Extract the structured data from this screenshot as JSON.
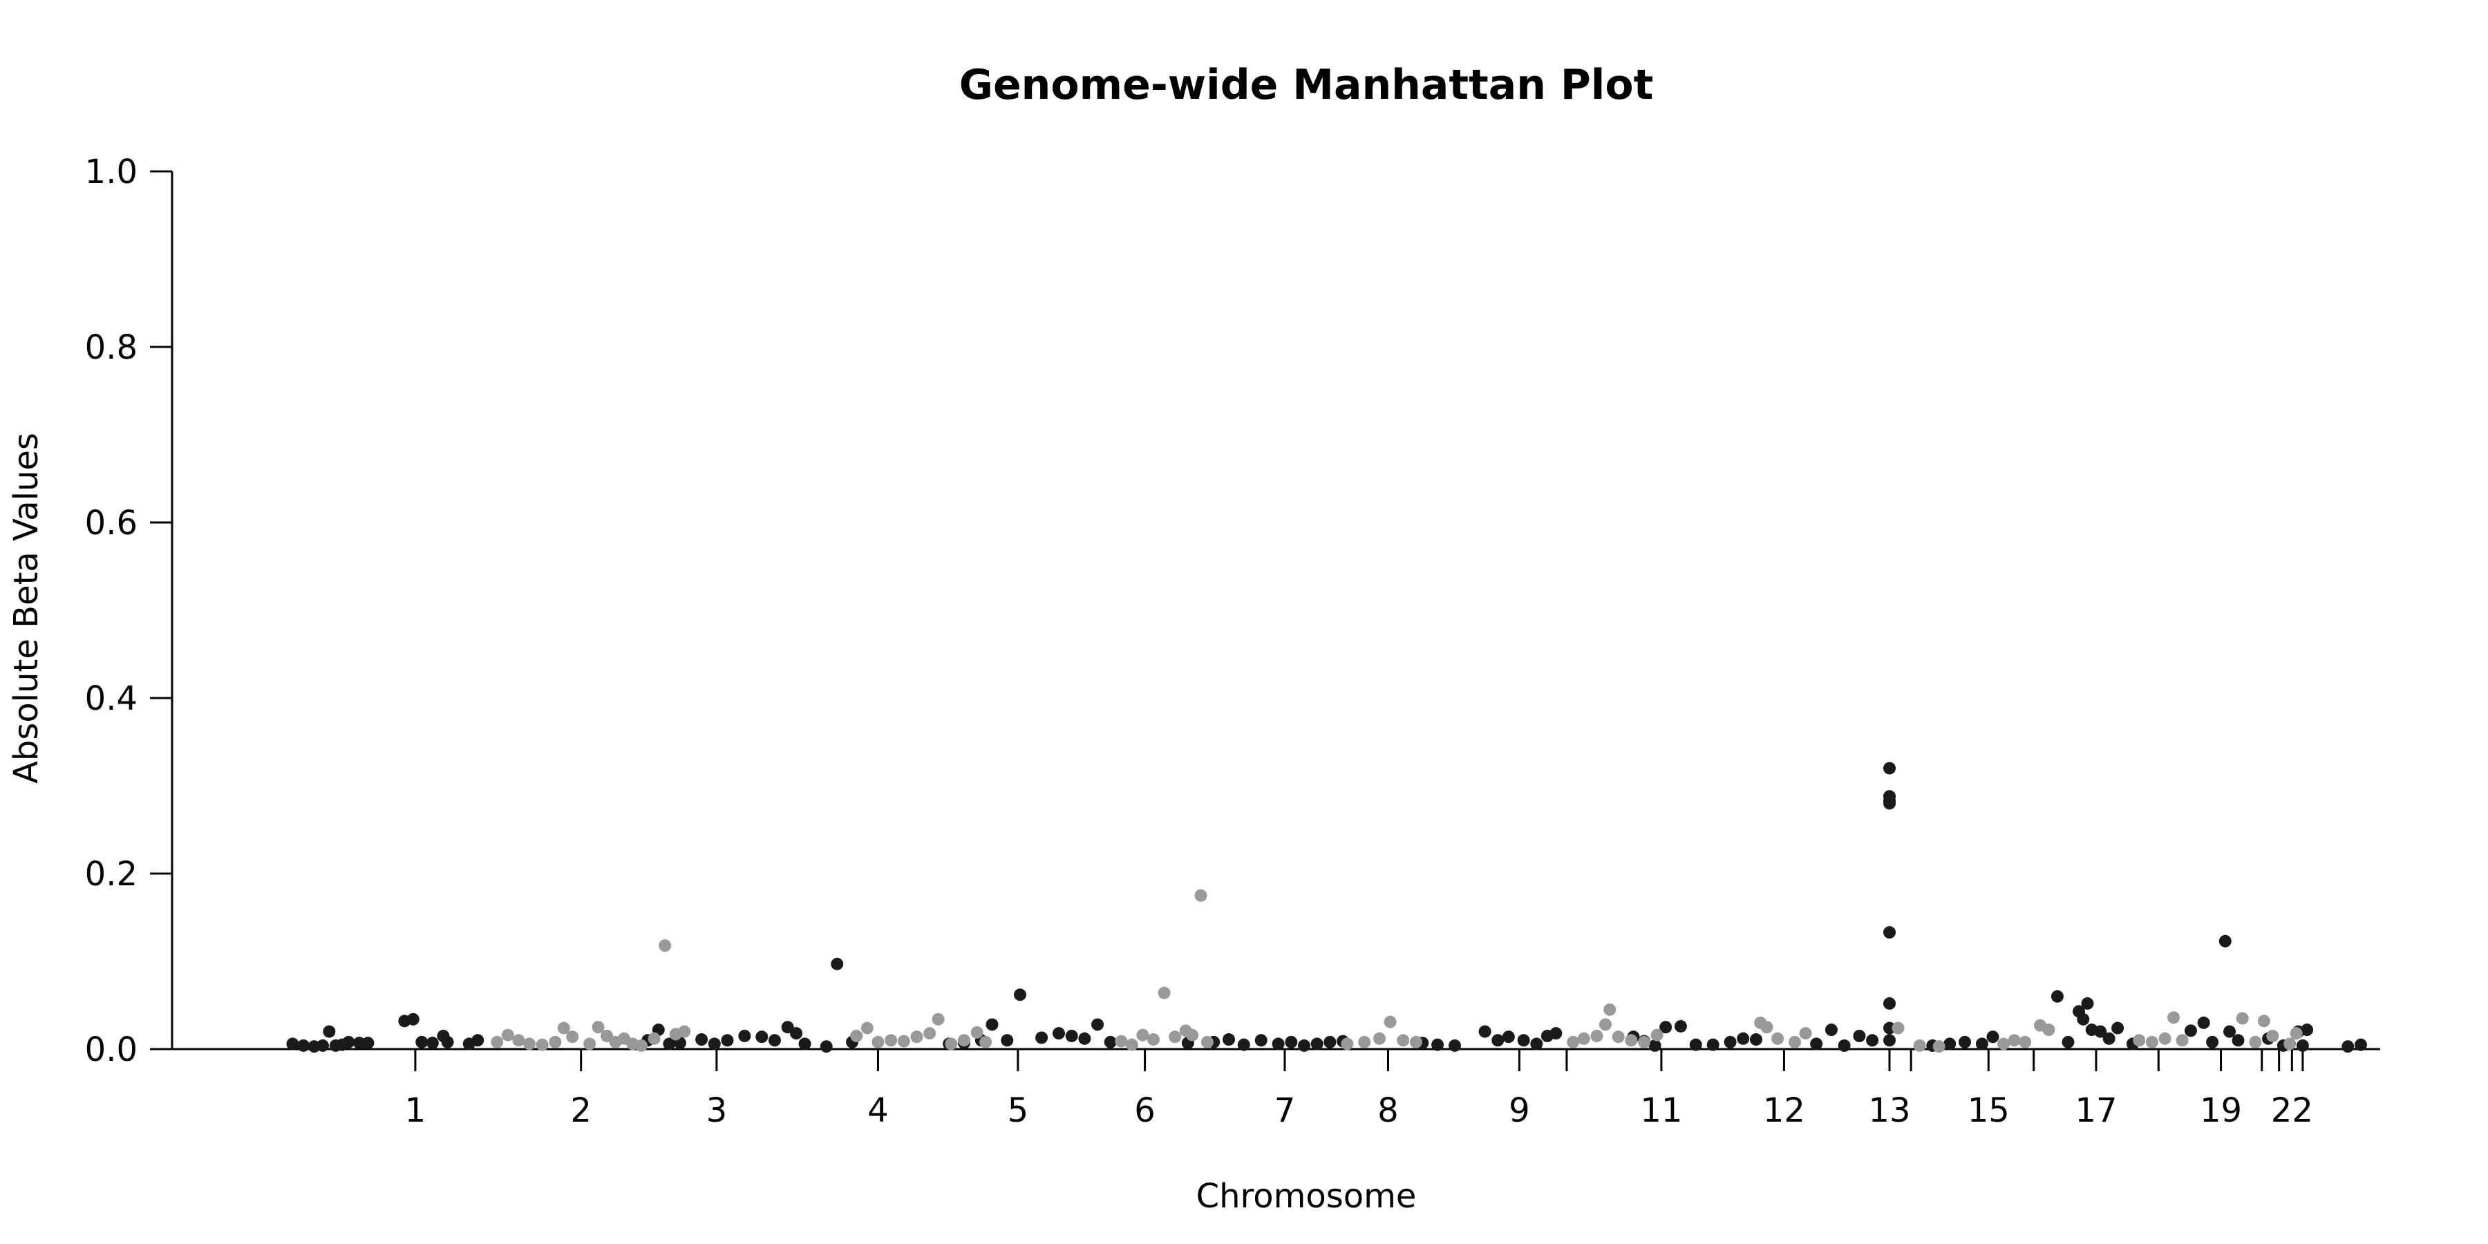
{
  "chart_data": {
    "type": "scatter",
    "title": "Genome-wide Manhattan Plot",
    "xlabel": "Chromosome",
    "ylabel": "Absolute Beta Values",
    "ylim": [
      0,
      1.0
    ],
    "yticks": [
      0.0,
      0.2,
      0.4,
      0.6,
      0.8,
      1.0
    ],
    "ytick_labels": [
      "0.0",
      "0.2",
      "0.4",
      "0.6",
      "0.8",
      "1.0"
    ],
    "grid": false,
    "legend": "none",
    "colors": {
      "odd": "#1a1a1a",
      "even": "#999999"
    },
    "xticks": [
      {
        "label": "1",
        "pos": 0.087
      },
      {
        "label": "2",
        "pos": 0.164
      },
      {
        "label": "3",
        "pos": 0.227
      },
      {
        "label": "4",
        "pos": 0.302
      },
      {
        "label": "5",
        "pos": 0.367
      },
      {
        "label": "6",
        "pos": 0.426
      },
      {
        "label": "7",
        "pos": 0.491
      },
      {
        "label": "8",
        "pos": 0.539
      },
      {
        "label": "9",
        "pos": 0.6
      },
      {
        "label": "",
        "pos": 0.622
      },
      {
        "label": "11",
        "pos": 0.666
      },
      {
        "label": "12",
        "pos": 0.723
      },
      {
        "label": "13",
        "pos": 0.772
      },
      {
        "label": "",
        "pos": 0.782
      },
      {
        "label": "15",
        "pos": 0.818
      },
      {
        "label": "",
        "pos": 0.839
      },
      {
        "label": "17",
        "pos": 0.868
      },
      {
        "label": "",
        "pos": 0.897
      },
      {
        "label": "19",
        "pos": 0.926
      },
      {
        "label": "",
        "pos": 0.945
      },
      {
        "label": "",
        "pos": 0.953
      },
      {
        "label": "22",
        "pos": 0.959
      },
      {
        "label": "",
        "pos": 0.964
      }
    ],
    "series": [
      {
        "color": "odd",
        "points": [
          [
            0.03,
            0.006
          ],
          [
            0.035,
            0.004
          ],
          [
            0.04,
            0.003
          ],
          [
            0.044,
            0.004
          ],
          [
            0.047,
            0.02
          ],
          [
            0.05,
            0.004
          ],
          [
            0.053,
            0.005
          ],
          [
            0.056,
            0.008
          ],
          [
            0.061,
            0.007
          ],
          [
            0.065,
            0.007
          ],
          [
            0.082,
            0.032
          ],
          [
            0.086,
            0.034
          ],
          [
            0.09,
            0.008
          ],
          [
            0.095,
            0.007
          ],
          [
            0.1,
            0.015
          ],
          [
            0.102,
            0.008
          ],
          [
            0.112,
            0.006
          ],
          [
            0.116,
            0.01
          ],
          [
            0.195,
            0.01
          ],
          [
            0.2,
            0.022
          ],
          [
            0.205,
            0.006
          ],
          [
            0.21,
            0.007
          ],
          [
            0.22,
            0.011
          ],
          [
            0.226,
            0.006
          ],
          [
            0.232,
            0.01
          ],
          [
            0.24,
            0.015
          ],
          [
            0.248,
            0.014
          ],
          [
            0.254,
            0.01
          ],
          [
            0.26,
            0.025
          ],
          [
            0.264,
            0.018
          ],
          [
            0.268,
            0.006
          ],
          [
            0.278,
            0.003
          ],
          [
            0.283,
            0.097
          ],
          [
            0.29,
            0.008
          ],
          [
            0.335,
            0.006
          ],
          [
            0.342,
            0.007
          ],
          [
            0.35,
            0.01
          ],
          [
            0.355,
            0.028
          ],
          [
            0.362,
            0.01
          ],
          [
            0.368,
            0.062
          ],
          [
            0.378,
            0.013
          ],
          [
            0.386,
            0.018
          ],
          [
            0.392,
            0.015
          ],
          [
            0.398,
            0.012
          ],
          [
            0.404,
            0.028
          ],
          [
            0.41,
            0.008
          ],
          [
            0.446,
            0.007
          ],
          [
            0.458,
            0.008
          ],
          [
            0.465,
            0.011
          ],
          [
            0.472,
            0.005
          ],
          [
            0.48,
            0.01
          ],
          [
            0.488,
            0.006
          ],
          [
            0.494,
            0.008
          ],
          [
            0.5,
            0.004
          ],
          [
            0.506,
            0.006
          ],
          [
            0.512,
            0.008
          ],
          [
            0.518,
            0.009
          ],
          [
            0.555,
            0.007
          ],
          [
            0.562,
            0.005
          ],
          [
            0.57,
            0.004
          ],
          [
            0.584,
            0.02
          ],
          [
            0.59,
            0.01
          ],
          [
            0.595,
            0.014
          ],
          [
            0.602,
            0.01
          ],
          [
            0.608,
            0.006
          ],
          [
            0.613,
            0.015
          ],
          [
            0.617,
            0.018
          ],
          [
            0.653,
            0.014
          ],
          [
            0.658,
            0.009
          ],
          [
            0.663,
            0.004
          ],
          [
            0.668,
            0.025
          ],
          [
            0.675,
            0.026
          ],
          [
            0.682,
            0.005
          ],
          [
            0.69,
            0.005
          ],
          [
            0.698,
            0.008
          ],
          [
            0.704,
            0.012
          ],
          [
            0.71,
            0.011
          ],
          [
            0.738,
            0.006
          ],
          [
            0.745,
            0.022
          ],
          [
            0.751,
            0.004
          ],
          [
            0.758,
            0.015
          ],
          [
            0.764,
            0.01
          ],
          [
            0.772,
            0.32
          ],
          [
            0.772,
            0.288
          ],
          [
            0.772,
            0.283
          ],
          [
            0.772,
            0.28
          ],
          [
            0.772,
            0.133
          ],
          [
            0.772,
            0.052
          ],
          [
            0.772,
            0.01
          ],
          [
            0.772,
            0.024
          ],
          [
            0.792,
            0.004
          ],
          [
            0.8,
            0.006
          ],
          [
            0.807,
            0.008
          ],
          [
            0.815,
            0.006
          ],
          [
            0.82,
            0.014
          ],
          [
            0.85,
            0.06
          ],
          [
            0.855,
            0.008
          ],
          [
            0.86,
            0.043
          ],
          [
            0.862,
            0.034
          ],
          [
            0.864,
            0.052
          ],
          [
            0.866,
            0.022
          ],
          [
            0.87,
            0.02
          ],
          [
            0.874,
            0.012
          ],
          [
            0.878,
            0.024
          ],
          [
            0.885,
            0.006
          ],
          [
            0.912,
            0.021
          ],
          [
            0.918,
            0.03
          ],
          [
            0.922,
            0.008
          ],
          [
            0.928,
            0.123
          ],
          [
            0.93,
            0.02
          ],
          [
            0.934,
            0.01
          ],
          [
            0.948,
            0.012
          ],
          [
            0.955,
            0.004
          ],
          [
            0.962,
            0.02
          ],
          [
            0.966,
            0.022
          ],
          [
            0.964,
            0.004
          ],
          [
            0.985,
            0.003
          ],
          [
            0.991,
            0.005
          ]
        ]
      },
      {
        "color": "even",
        "points": [
          [
            0.125,
            0.008
          ],
          [
            0.13,
            0.016
          ],
          [
            0.135,
            0.01
          ],
          [
            0.14,
            0.006
          ],
          [
            0.146,
            0.005
          ],
          [
            0.152,
            0.008
          ],
          [
            0.156,
            0.024
          ],
          [
            0.16,
            0.014
          ],
          [
            0.168,
            0.006
          ],
          [
            0.172,
            0.025
          ],
          [
            0.176,
            0.015
          ],
          [
            0.18,
            0.008
          ],
          [
            0.184,
            0.012
          ],
          [
            0.188,
            0.006
          ],
          [
            0.192,
            0.004
          ],
          [
            0.198,
            0.012
          ],
          [
            0.203,
            0.118
          ],
          [
            0.208,
            0.017
          ],
          [
            0.212,
            0.02
          ],
          [
            0.292,
            0.015
          ],
          [
            0.297,
            0.024
          ],
          [
            0.302,
            0.008
          ],
          [
            0.308,
            0.01
          ],
          [
            0.314,
            0.009
          ],
          [
            0.32,
            0.014
          ],
          [
            0.326,
            0.018
          ],
          [
            0.33,
            0.034
          ],
          [
            0.336,
            0.006
          ],
          [
            0.342,
            0.01
          ],
          [
            0.348,
            0.019
          ],
          [
            0.352,
            0.008
          ],
          [
            0.415,
            0.009
          ],
          [
            0.42,
            0.005
          ],
          [
            0.425,
            0.016
          ],
          [
            0.43,
            0.011
          ],
          [
            0.435,
            0.064
          ],
          [
            0.44,
            0.014
          ],
          [
            0.445,
            0.021
          ],
          [
            0.448,
            0.016
          ],
          [
            0.452,
            0.175
          ],
          [
            0.455,
            0.008
          ],
          [
            0.52,
            0.006
          ],
          [
            0.528,
            0.008
          ],
          [
            0.535,
            0.012
          ],
          [
            0.54,
            0.031
          ],
          [
            0.546,
            0.01
          ],
          [
            0.552,
            0.008
          ],
          [
            0.625,
            0.008
          ],
          [
            0.63,
            0.012
          ],
          [
            0.636,
            0.015
          ],
          [
            0.64,
            0.028
          ],
          [
            0.642,
            0.045
          ],
          [
            0.646,
            0.014
          ],
          [
            0.652,
            0.01
          ],
          [
            0.658,
            0.008
          ],
          [
            0.664,
            0.016
          ],
          [
            0.712,
            0.03
          ],
          [
            0.715,
            0.025
          ],
          [
            0.72,
            0.012
          ],
          [
            0.728,
            0.008
          ],
          [
            0.733,
            0.018
          ],
          [
            0.776,
            0.024
          ],
          [
            0.786,
            0.004
          ],
          [
            0.795,
            0.003
          ],
          [
            0.825,
            0.006
          ],
          [
            0.83,
            0.01
          ],
          [
            0.835,
            0.008
          ],
          [
            0.842,
            0.027
          ],
          [
            0.846,
            0.022
          ],
          [
            0.888,
            0.01
          ],
          [
            0.894,
            0.008
          ],
          [
            0.9,
            0.012
          ],
          [
            0.904,
            0.036
          ],
          [
            0.908,
            0.01
          ],
          [
            0.936,
            0.035
          ],
          [
            0.942,
            0.008
          ],
          [
            0.946,
            0.032
          ],
          [
            0.95,
            0.015
          ],
          [
            0.958,
            0.006
          ],
          [
            0.961,
            0.018
          ]
        ]
      }
    ]
  }
}
